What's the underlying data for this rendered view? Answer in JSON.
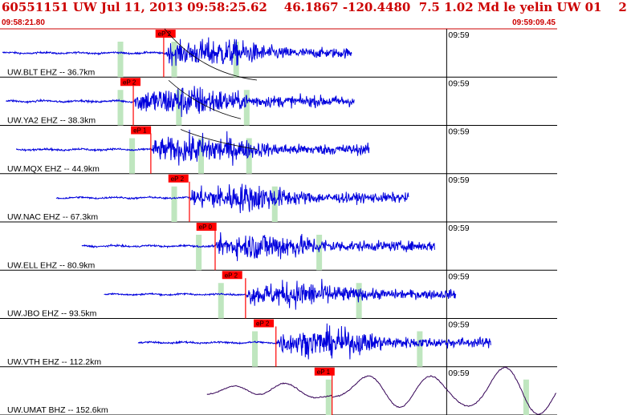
{
  "header": {
    "title": "60551151 UW Jul 11, 2013 09:58:25.62    46.1867 -120.4480  7.5 1.02 Md le yelin UW 01    2",
    "start_time": "09:58:21.80",
    "end_time": "09:59:09.45"
  },
  "colors": {
    "trace": "#0000dd",
    "trace_last": "#330055",
    "pick": "#ff0000",
    "marker": "#bfe6bf",
    "header": "#cc0000",
    "travel_curve": "#000000"
  },
  "chart_data": {
    "type": "seismogram",
    "time_start": "09:58:21.80",
    "time_end": "09:59:09.45",
    "time_range_s": [
      0,
      47.65
    ],
    "tick_label": "09:59",
    "tick_time_s": 38.2,
    "channels": [
      {
        "label": "UW.BLT EHZ -- 36.7km",
        "distance_km": 36.7,
        "pick": "eP 2",
        "pick_s": 13.3,
        "signal_start_s": 0.2,
        "signal_end_s": 30.1,
        "onset_s": 14.0,
        "markers_s": [
          10.3,
          14.9,
          20.2
        ],
        "amp": 0.75
      },
      {
        "label": "UW.YA2 EHZ -- 38.3km",
        "distance_km": 38.3,
        "pick": "eP 2",
        "pick_s": 10.3,
        "signal_start_s": 0.5,
        "signal_end_s": 30.3,
        "onset_s": 11.4,
        "markers_s": [
          10.3,
          15.3,
          21.1
        ],
        "amp": 0.85
      },
      {
        "label": "UW.MQX EHZ -- 44.9km",
        "distance_km": 44.9,
        "pick": "eP 1",
        "pick_s": 11.2,
        "signal_start_s": 1.4,
        "signal_end_s": 31.6,
        "onset_s": 12.9,
        "markers_s": [
          11.3,
          17.2,
          21.3
        ],
        "amp": 0.8
      },
      {
        "label": "UW.NAC EHZ -- 67.3km",
        "distance_km": 67.3,
        "pick": "eP 2",
        "pick_s": 14.4,
        "signal_start_s": 4.8,
        "signal_end_s": 35.0,
        "onset_s": 16.2,
        "markers_s": [
          14.9,
          23.5
        ],
        "amp": 0.75
      },
      {
        "label": "UW.ELL EHZ -- 80.9km",
        "distance_km": 80.9,
        "pick": "eP 0",
        "pick_s": 16.8,
        "signal_start_s": 7.0,
        "signal_end_s": 37.2,
        "onset_s": 18.4,
        "markers_s": [
          17.0,
          27.3
        ],
        "amp": 0.75
      },
      {
        "label": "UW.JBO EHZ -- 93.5km",
        "distance_km": 93.5,
        "pick": "eP 2",
        "pick_s": 19.0,
        "signal_start_s": 8.9,
        "signal_end_s": 39.0,
        "onset_s": 21.0,
        "markers_s": [
          18.9,
          30.7
        ],
        "amp": 0.7
      },
      {
        "label": "UW.VTH EHZ -- 112.2km",
        "distance_km": 112.2,
        "pick": "eP 2",
        "pick_s": 21.7,
        "signal_start_s": 11.8,
        "signal_end_s": 42.0,
        "onset_s": 23.6,
        "markers_s": [
          21.8,
          35.9
        ],
        "amp": 0.75
      },
      {
        "label": "UW.UMAT BHZ -- 152.6km",
        "distance_km": 152.6,
        "pick": "eP 1",
        "pick_s": 26.9,
        "signal_start_s": 17.7,
        "signal_end_s": 47.6,
        "onset_s": 28.4,
        "markers_s": [
          28.1,
          45.0
        ],
        "amp": 0.85
      }
    ]
  }
}
